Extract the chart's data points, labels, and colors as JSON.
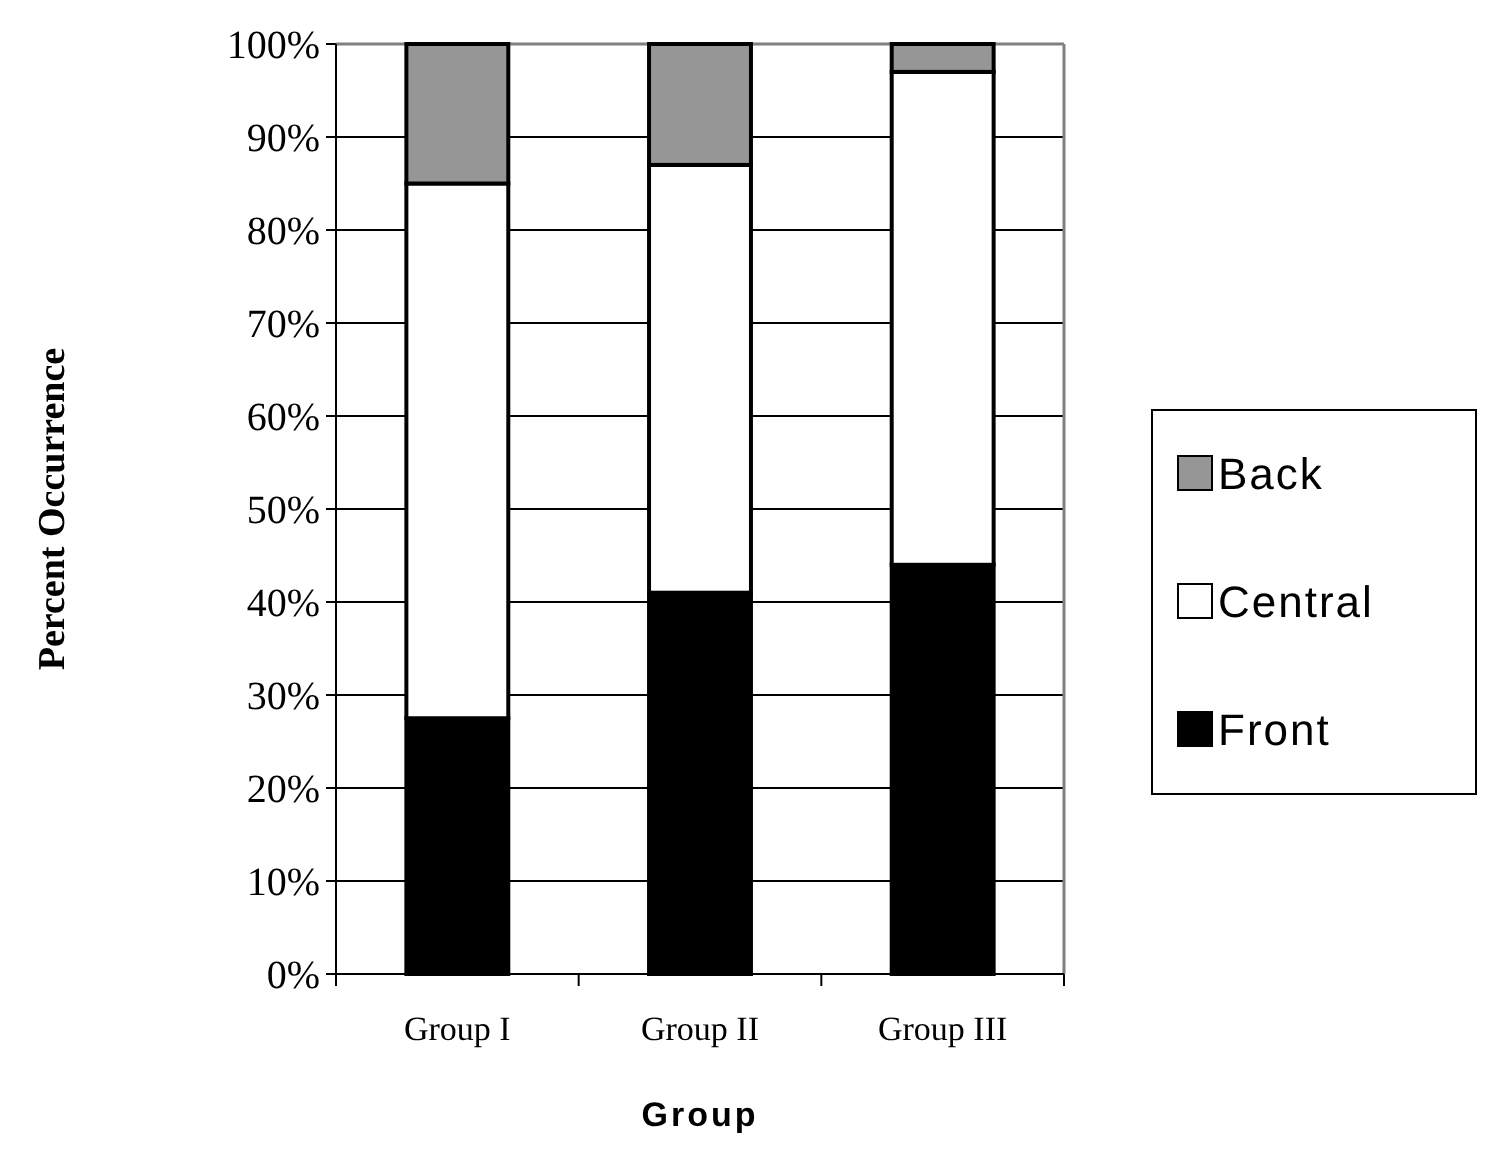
{
  "chart_data": {
    "type": "bar",
    "stacked": true,
    "xlabel": "Group",
    "ylabel": "Percent Occurrence",
    "categories": [
      "Group I",
      "Group II",
      "Group III"
    ],
    "series": [
      {
        "name": "Front",
        "color": "#000000",
        "values": [
          27.5,
          41,
          44
        ]
      },
      {
        "name": "Central",
        "color": "#ffffff",
        "values": [
          57.5,
          46,
          53
        ]
      },
      {
        "name": "Back",
        "color": "#969696",
        "values": [
          15,
          13,
          3
        ]
      }
    ],
    "ylim": [
      0,
      100
    ],
    "yticks": [
      {
        "value": 0,
        "label": "0%"
      },
      {
        "value": 10,
        "label": "10%"
      },
      {
        "value": 20,
        "label": "20%"
      },
      {
        "value": 30,
        "label": "30%"
      },
      {
        "value": 40,
        "label": "40%"
      },
      {
        "value": 50,
        "label": "50%"
      },
      {
        "value": 60,
        "label": "60%"
      },
      {
        "value": 70,
        "label": "70%"
      },
      {
        "value": 80,
        "label": "80%"
      },
      {
        "value": 90,
        "label": "90%"
      },
      {
        "value": 100,
        "label": "100%"
      }
    ],
    "grid": "y",
    "legend": "right"
  }
}
